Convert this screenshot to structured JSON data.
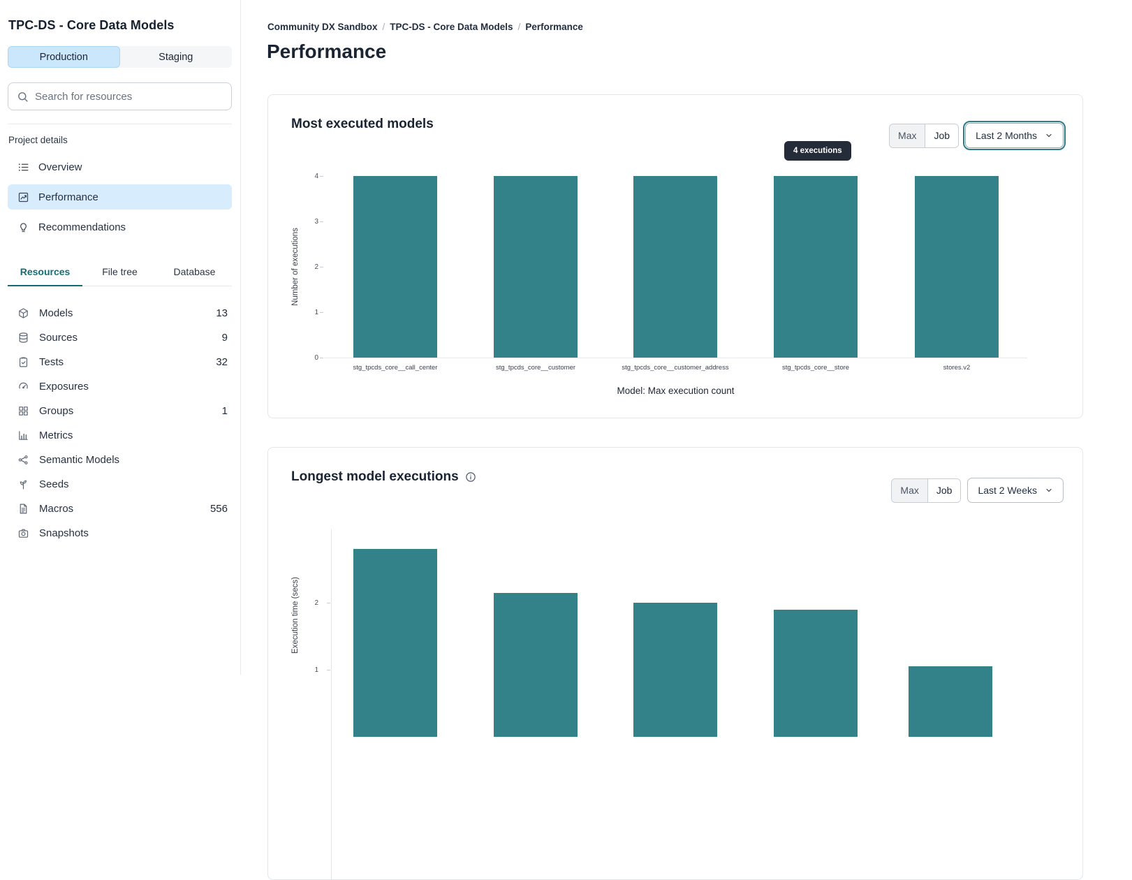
{
  "colors": {
    "bar_teal": "#33828A",
    "accent_blue_bg": "#CBE7FB",
    "active_nav_bg": "#D7ECFC",
    "tab_active_teal": "#156D74",
    "tooltip_bg": "#242B39",
    "focus_ring_teal": "#2C7D85"
  },
  "sidebar": {
    "title": "TPC-DS - Core Data Models",
    "env_tabs": [
      {
        "label": "Production",
        "active": true
      },
      {
        "label": "Staging",
        "active": false
      }
    ],
    "search": {
      "placeholder": "Search for resources"
    },
    "section_label": "Project details",
    "nav": [
      {
        "icon": "list-icon",
        "label": "Overview",
        "active": false
      },
      {
        "icon": "trend-chart-icon",
        "label": "Performance",
        "active": true
      },
      {
        "icon": "lightbulb-icon",
        "label": "Recommendations",
        "active": false
      }
    ],
    "tabs": [
      {
        "label": "Resources",
        "active": true
      },
      {
        "label": "File tree",
        "active": false
      },
      {
        "label": "Database",
        "active": false
      }
    ],
    "resources": [
      {
        "icon": "cube-icon",
        "label": "Models",
        "count": "13"
      },
      {
        "icon": "database-icon",
        "label": "Sources",
        "count": "9"
      },
      {
        "icon": "clipboard-check-icon",
        "label": "Tests",
        "count": "32"
      },
      {
        "icon": "gauge-icon",
        "label": "Exposures",
        "count": ""
      },
      {
        "icon": "grid-icon",
        "label": "Groups",
        "count": "1"
      },
      {
        "icon": "bar-chart-icon",
        "label": "Metrics",
        "count": ""
      },
      {
        "icon": "graph-nodes-icon",
        "label": "Semantic Models",
        "count": ""
      },
      {
        "icon": "sprout-icon",
        "label": "Seeds",
        "count": ""
      },
      {
        "icon": "file-text-icon",
        "label": "Macros",
        "count": "556"
      },
      {
        "icon": "camera-icon",
        "label": "Snapshots",
        "count": ""
      }
    ]
  },
  "breadcrumb": {
    "items": [
      "Community DX Sandbox",
      "TPC-DS - Core Data Models",
      "Performance"
    ],
    "separator": "/"
  },
  "page_title": "Performance",
  "chart_data": [
    {
      "type": "bar",
      "title": "Most executed models",
      "categories": [
        "stg_tpcds_core__call_center",
        "stg_tpcds_core__customer",
        "stg_tpcds_core__customer_address",
        "stg_tpcds_core__store",
        "stores.v2"
      ],
      "values": [
        4,
        4,
        4,
        4,
        4
      ],
      "xlabel": "Model: Max execution count",
      "ylabel": "Number of executions",
      "yticks": [
        0,
        1,
        2,
        3,
        4
      ],
      "ylim": [
        0,
        4
      ],
      "grid": false,
      "legend": "none",
      "bar_color": "#33828A",
      "tooltip": "4 executions",
      "toggle": {
        "options": [
          "Max",
          "Job"
        ],
        "selected": "Max"
      },
      "range_selector": "Last 2 Months",
      "range_focused": true
    },
    {
      "type": "bar",
      "title": "Longest model executions",
      "has_info_icon": true,
      "categories": [
        "",
        "",
        "",
        "",
        ""
      ],
      "values": [
        2.8,
        2.15,
        2.0,
        1.9,
        1.05
      ],
      "xlabel": "",
      "ylabel": "Execution time (secs)",
      "yticks": [
        1,
        2
      ],
      "ylim": [
        0,
        3
      ],
      "grid": false,
      "legend": "none",
      "bar_color": "#33828A",
      "toggle": {
        "options": [
          "Max",
          "Job"
        ],
        "selected": "Max"
      },
      "range_selector": "Last 2 Weeks",
      "range_focused": false
    }
  ]
}
